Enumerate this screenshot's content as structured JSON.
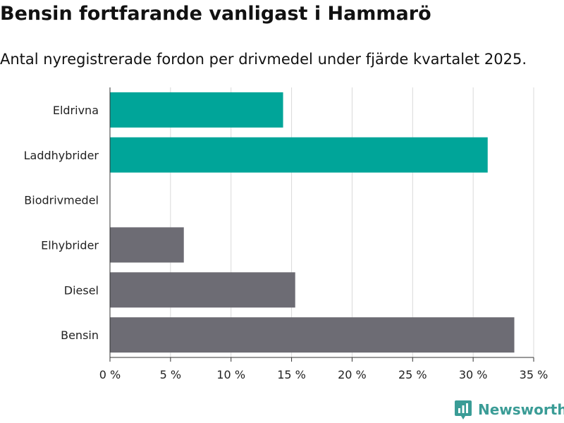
{
  "chart_data": {
    "type": "bar",
    "orientation": "horizontal",
    "title": "Bensin fortfarande vanligast i Hammarö",
    "subtitle": "Antal nyregistrerade fordon per drivmedel under fjärde kvartalet 2025.",
    "categories": [
      "Eldrivna",
      "Laddhybrider",
      "Biodrivmedel",
      "Elhybrider",
      "Diesel",
      "Bensin"
    ],
    "values": [
      14.3,
      31.2,
      0,
      6.1,
      15.3,
      33.4
    ],
    "bar_colors": [
      "#00a599",
      "#00a599",
      "#6d6c74",
      "#6d6c74",
      "#6d6c74",
      "#6d6c74"
    ],
    "xlim": [
      0,
      35
    ],
    "xticks": [
      0,
      5,
      10,
      15,
      20,
      25,
      30,
      35
    ],
    "xtick_labels": [
      "0 %",
      "5 %",
      "10 %",
      "15 %",
      "20 %",
      "25 %",
      "30 %",
      "35 %"
    ],
    "xlabel": "",
    "ylabel": "",
    "grid": true,
    "legend": "none"
  },
  "branding": {
    "name": "Newsworthy",
    "icon": "bar-chart-bubble-icon",
    "color": "#3a9c96"
  }
}
